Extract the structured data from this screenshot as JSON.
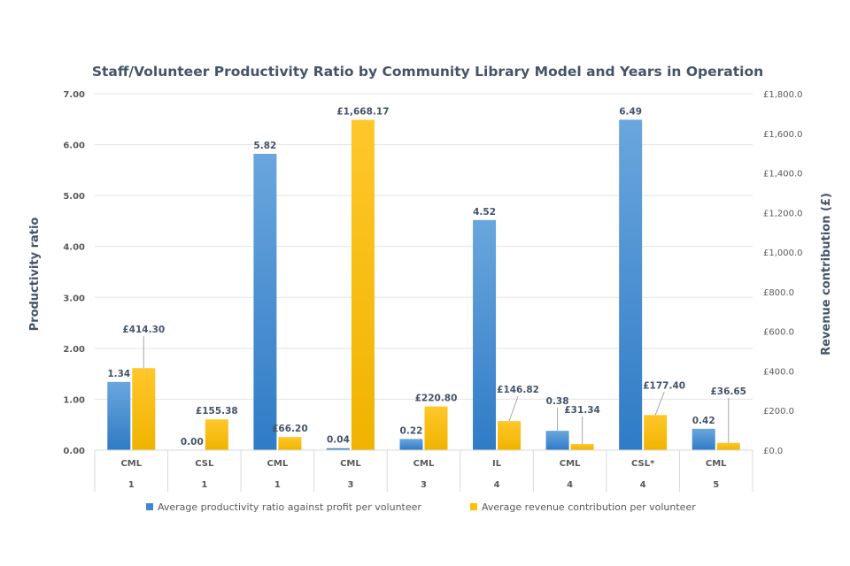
{
  "chart_data": {
    "type": "bar",
    "title": "Staff/Volunteer Productivity Ratio by Community Library Model and Years in Operation",
    "xlabel": "",
    "ylabel": "Productivity ratio",
    "y2label": "Revenue contribution (£)",
    "ylim": [
      0,
      7
    ],
    "y2lim": [
      0,
      1800
    ],
    "yticks": [
      "0.00",
      "1.00",
      "2.00",
      "3.00",
      "4.00",
      "5.00",
      "6.00",
      "7.00"
    ],
    "y2ticks": [
      "£0.0",
      "£200.0",
      "£400.0",
      "£600.0",
      "£800.0",
      "£1,000.0",
      "£1,200.0",
      "£1,400.0",
      "£1,600.0",
      "£1,800.0"
    ],
    "grid": true,
    "legend_position": "bottom",
    "categories": [
      {
        "model": "CML",
        "years": "1"
      },
      {
        "model": "CSL",
        "years": "1"
      },
      {
        "model": "CML",
        "years": "1"
      },
      {
        "model": "CML",
        "years": "3"
      },
      {
        "model": "CML",
        "years": "3"
      },
      {
        "model": "IL",
        "years": "4"
      },
      {
        "model": "CML",
        "years": "4"
      },
      {
        "model": "CSL*",
        "years": "4"
      },
      {
        "model": "CML",
        "years": "5"
      }
    ],
    "series": [
      {
        "name": "Average productivity ratio against profit per volunteer",
        "axis": "left",
        "color": "#3f88cf",
        "values": [
          1.34,
          0.0,
          5.82,
          0.04,
          0.22,
          4.52,
          0.38,
          6.49,
          0.42
        ],
        "labels": [
          "1.34",
          "0.00",
          "5.82",
          "0.04",
          "0.22",
          "4.52",
          "0.38",
          "6.49",
          "0.42"
        ]
      },
      {
        "name": "Average revenue contribution per volunteer",
        "axis": "right",
        "color": "#ffc000",
        "values": [
          414.3,
          155.38,
          66.2,
          1668.17,
          220.8,
          146.82,
          31.34,
          177.4,
          36.65
        ],
        "labels": [
          "£414.30",
          "£155.38",
          "£66.20",
          "£1,668.17",
          "£220.80",
          "£146.82",
          "£31.34",
          "£177.40",
          "£36.65"
        ]
      }
    ]
  }
}
